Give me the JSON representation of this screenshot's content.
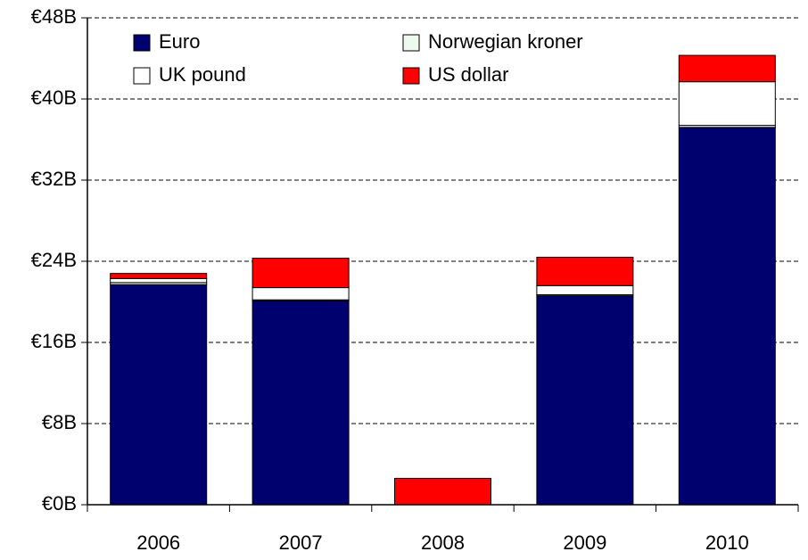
{
  "chart_data": {
    "type": "stacked_bar",
    "categories": [
      "2006",
      "2007",
      "2008",
      "2009",
      "2010"
    ],
    "series": [
      {
        "name": "Euro",
        "color": "#00006e",
        "values": [
          21.7,
          20.1,
          0,
          20.6,
          37.2
        ]
      },
      {
        "name": "Norwegian kroner",
        "color": "#eefaf0",
        "values": [
          0.2,
          0.1,
          0,
          0.1,
          0.2
        ]
      },
      {
        "name": "UK pound",
        "color": "#ffffff",
        "values": [
          0.4,
          1.2,
          0,
          0.9,
          4.3
        ]
      },
      {
        "name": "US dollar",
        "color": "#ff0000",
        "values": [
          0.5,
          2.9,
          2.6,
          2.8,
          2.6
        ]
      }
    ],
    "ylim": [
      0,
      48
    ],
    "yticks": [
      {
        "value": 0,
        "label": "€0B"
      },
      {
        "value": 8,
        "label": "€8B"
      },
      {
        "value": 16,
        "label": "€16B"
      },
      {
        "value": 24,
        "label": "€24B"
      },
      {
        "value": 32,
        "label": "€32B"
      },
      {
        "value": 40,
        "label": "€40B"
      },
      {
        "value": 48,
        "label": "€48B"
      }
    ],
    "grid": true,
    "legend": "upper left"
  }
}
